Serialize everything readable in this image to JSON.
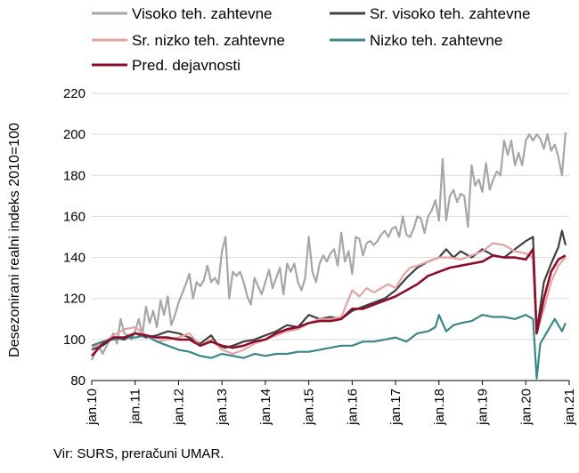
{
  "chart_data": {
    "type": "line",
    "ylabel": "Desezonirani realni indeks 2010=100",
    "ylim": [
      80,
      220
    ],
    "yticks": [
      80,
      100,
      120,
      140,
      160,
      180,
      200,
      220
    ],
    "xticks": [
      "jan.10",
      "jan.11",
      "jan.12",
      "jan.13",
      "jan.14",
      "jan.15",
      "jan.16",
      "jan.17",
      "jan.18",
      "jan.19",
      "jan.20",
      "jan.21"
    ],
    "grid": "horizontal",
    "legend_position": "top",
    "series": [
      {
        "name": "Visoko teh. zahtevne",
        "color": "#a6a6a6",
        "points": [
          [
            0,
            90
          ],
          [
            2,
            97
          ],
          [
            3,
            93
          ],
          [
            5,
            100
          ],
          [
            6,
            103
          ],
          [
            7,
            98
          ],
          [
            8,
            110
          ],
          [
            9,
            103
          ],
          [
            10,
            102
          ],
          [
            11,
            100
          ],
          [
            12,
            104
          ],
          [
            13,
            110
          ],
          [
            14,
            102
          ],
          [
            15,
            116
          ],
          [
            16,
            108
          ],
          [
            17,
            114
          ],
          [
            18,
            106
          ],
          [
            19,
            119
          ],
          [
            20,
            112
          ],
          [
            21,
            121
          ],
          [
            22,
            107
          ],
          [
            23,
            112
          ],
          [
            24,
            118
          ],
          [
            26,
            127
          ],
          [
            27,
            132
          ],
          [
            28,
            120
          ],
          [
            29,
            128
          ],
          [
            30,
            126
          ],
          [
            31,
            129
          ],
          [
            32,
            136
          ],
          [
            33,
            128
          ],
          [
            34,
            130
          ],
          [
            35,
            127
          ],
          [
            36,
            143
          ],
          [
            37,
            150
          ],
          [
            38,
            120
          ],
          [
            39,
            133
          ],
          [
            40,
            131
          ],
          [
            41,
            133
          ],
          [
            42,
            128
          ],
          [
            43,
            121
          ],
          [
            44,
            117
          ],
          [
            45,
            130
          ],
          [
            46,
            126
          ],
          [
            47,
            122
          ],
          [
            48,
            128
          ],
          [
            49,
            134
          ],
          [
            50,
            125
          ],
          [
            51,
            130
          ],
          [
            52,
            135
          ],
          [
            53,
            122
          ],
          [
            54,
            137
          ],
          [
            55,
            133
          ],
          [
            56,
            137
          ],
          [
            57,
            128
          ],
          [
            58,
            124
          ],
          [
            59,
            130
          ],
          [
            60,
            150
          ],
          [
            61,
            133
          ],
          [
            62,
            128
          ],
          [
            63,
            137
          ],
          [
            64,
            141
          ],
          [
            65,
            138
          ],
          [
            66,
            142
          ],
          [
            67,
            144
          ],
          [
            68,
            136
          ],
          [
            69,
            152
          ],
          [
            70,
            138
          ],
          [
            71,
            143
          ],
          [
            72,
            132
          ],
          [
            73,
            150
          ],
          [
            74,
            149
          ],
          [
            75,
            141
          ],
          [
            76,
            147
          ],
          [
            77,
            148
          ],
          [
            78,
            146
          ],
          [
            79,
            148
          ],
          [
            80,
            151
          ],
          [
            81,
            153
          ],
          [
            82,
            150
          ],
          [
            83,
            154
          ],
          [
            84,
            155
          ],
          [
            85,
            150
          ],
          [
            86,
            160
          ],
          [
            87,
            151
          ],
          [
            88,
            150
          ],
          [
            89,
            154
          ],
          [
            90,
            160
          ],
          [
            91,
            159
          ],
          [
            92,
            152
          ],
          [
            93,
            160
          ],
          [
            94,
            163
          ],
          [
            95,
            168
          ],
          [
            96,
            158
          ],
          [
            97,
            188
          ],
          [
            98,
            158
          ],
          [
            99,
            170
          ],
          [
            100,
            173
          ],
          [
            101,
            167
          ],
          [
            102,
            171
          ],
          [
            103,
            170
          ],
          [
            104,
            155
          ],
          [
            105,
            185
          ],
          [
            106,
            175
          ],
          [
            107,
            178
          ],
          [
            108,
            172
          ],
          [
            109,
            186
          ],
          [
            110,
            173
          ],
          [
            111,
            178
          ],
          [
            112,
            182
          ],
          [
            113,
            180
          ],
          [
            114,
            197
          ],
          [
            115,
            190
          ],
          [
            116,
            197
          ],
          [
            117,
            185
          ],
          [
            118,
            191
          ],
          [
            119,
            185
          ],
          [
            120,
            197
          ],
          [
            121,
            200
          ],
          [
            122,
            197
          ],
          [
            123,
            200
          ],
          [
            124,
            198
          ],
          [
            125,
            193
          ],
          [
            126,
            200
          ],
          [
            127,
            192
          ],
          [
            128,
            195
          ],
          [
            129,
            189
          ],
          [
            130,
            180
          ],
          [
            131,
            201
          ]
        ]
      },
      {
        "name": "Sr. visoko teh. zahtevne",
        "color": "#404040",
        "points": [
          [
            0,
            95
          ],
          [
            3,
            97
          ],
          [
            6,
            101
          ],
          [
            9,
            100
          ],
          [
            12,
            103
          ],
          [
            15,
            101
          ],
          [
            18,
            102
          ],
          [
            21,
            104
          ],
          [
            24,
            103
          ],
          [
            27,
            101
          ],
          [
            30,
            98
          ],
          [
            33,
            102
          ],
          [
            35,
            97
          ],
          [
            37,
            96
          ],
          [
            39,
            97
          ],
          [
            42,
            99
          ],
          [
            45,
            100
          ],
          [
            48,
            102
          ],
          [
            51,
            104
          ],
          [
            54,
            107
          ],
          [
            57,
            106
          ],
          [
            60,
            112
          ],
          [
            63,
            110
          ],
          [
            66,
            111
          ],
          [
            69,
            110
          ],
          [
            72,
            114
          ],
          [
            75,
            116
          ],
          [
            78,
            118
          ],
          [
            81,
            120
          ],
          [
            84,
            124
          ],
          [
            87,
            130
          ],
          [
            90,
            135
          ],
          [
            93,
            138
          ],
          [
            96,
            140
          ],
          [
            98,
            144
          ],
          [
            100,
            140
          ],
          [
            102,
            143
          ],
          [
            105,
            140
          ],
          [
            108,
            144
          ],
          [
            111,
            141
          ],
          [
            114,
            140
          ],
          [
            117,
            144
          ],
          [
            120,
            148
          ],
          [
            122,
            150
          ],
          [
            123,
            104
          ],
          [
            125,
            128
          ],
          [
            127,
            137
          ],
          [
            129,
            145
          ],
          [
            130,
            153
          ],
          [
            131,
            146
          ]
        ]
      },
      {
        "name": "Sr. nizko teh. zahtevne",
        "color": "#e6a3a3",
        "points": [
          [
            0,
            96
          ],
          [
            3,
            98
          ],
          [
            6,
            102
          ],
          [
            9,
            105
          ],
          [
            12,
            106
          ],
          [
            15,
            102
          ],
          [
            18,
            99
          ],
          [
            21,
            100
          ],
          [
            24,
            101
          ],
          [
            27,
            103
          ],
          [
            30,
            97
          ],
          [
            33,
            100
          ],
          [
            36,
            95
          ],
          [
            39,
            93
          ],
          [
            42,
            95
          ],
          [
            45,
            98
          ],
          [
            48,
            100
          ],
          [
            51,
            102
          ],
          [
            54,
            104
          ],
          [
            57,
            105
          ],
          [
            60,
            108
          ],
          [
            63,
            110
          ],
          [
            66,
            110
          ],
          [
            69,
            111
          ],
          [
            72,
            124
          ],
          [
            74,
            121
          ],
          [
            76,
            125
          ],
          [
            78,
            123
          ],
          [
            80,
            125
          ],
          [
            82,
            127
          ],
          [
            84,
            125
          ],
          [
            86,
            131
          ],
          [
            88,
            135
          ],
          [
            90,
            136
          ],
          [
            93,
            138
          ],
          [
            96,
            140
          ],
          [
            99,
            140
          ],
          [
            102,
            139
          ],
          [
            105,
            141
          ],
          [
            108,
            143
          ],
          [
            111,
            147
          ],
          [
            114,
            146
          ],
          [
            117,
            143
          ],
          [
            120,
            142
          ],
          [
            122,
            140
          ],
          [
            123,
            103
          ],
          [
            125,
            115
          ],
          [
            127,
            128
          ],
          [
            129,
            136
          ],
          [
            131,
            140
          ]
        ]
      },
      {
        "name": "Nizko teh. zahtevne",
        "color": "#3b8687",
        "points": [
          [
            0,
            97
          ],
          [
            3,
            99
          ],
          [
            6,
            100
          ],
          [
            9,
            101
          ],
          [
            12,
            101
          ],
          [
            15,
            102
          ],
          [
            18,
            99
          ],
          [
            21,
            97
          ],
          [
            24,
            95
          ],
          [
            27,
            94
          ],
          [
            30,
            92
          ],
          [
            33,
            91
          ],
          [
            36,
            93
          ],
          [
            39,
            92
          ],
          [
            42,
            91
          ],
          [
            45,
            93
          ],
          [
            48,
            92
          ],
          [
            51,
            93
          ],
          [
            54,
            93
          ],
          [
            57,
            94
          ],
          [
            60,
            94
          ],
          [
            63,
            95
          ],
          [
            66,
            96
          ],
          [
            69,
            97
          ],
          [
            72,
            97
          ],
          [
            75,
            99
          ],
          [
            78,
            99
          ],
          [
            81,
            100
          ],
          [
            84,
            101
          ],
          [
            87,
            99
          ],
          [
            90,
            103
          ],
          [
            93,
            104
          ],
          [
            95,
            106
          ],
          [
            96,
            112
          ],
          [
            98,
            104
          ],
          [
            100,
            107
          ],
          [
            102,
            108
          ],
          [
            105,
            109
          ],
          [
            108,
            112
          ],
          [
            111,
            111
          ],
          [
            114,
            111
          ],
          [
            117,
            110
          ],
          [
            120,
            112
          ],
          [
            122,
            110
          ],
          [
            123,
            81
          ],
          [
            124,
            98
          ],
          [
            126,
            104
          ],
          [
            128,
            110
          ],
          [
            130,
            104
          ],
          [
            131,
            108
          ]
        ]
      },
      {
        "name": "Pred. dejavnosti",
        "color": "#8b0e2c",
        "points": [
          [
            0,
            92
          ],
          [
            3,
            98
          ],
          [
            6,
            101
          ],
          [
            9,
            101
          ],
          [
            12,
            103
          ],
          [
            15,
            102
          ],
          [
            18,
            101
          ],
          [
            21,
            101
          ],
          [
            24,
            100
          ],
          [
            27,
            100
          ],
          [
            30,
            97
          ],
          [
            33,
            99
          ],
          [
            36,
            97
          ],
          [
            39,
            96
          ],
          [
            42,
            97
          ],
          [
            45,
            99
          ],
          [
            48,
            100
          ],
          [
            51,
            103
          ],
          [
            54,
            105
          ],
          [
            57,
            106
          ],
          [
            60,
            108
          ],
          [
            63,
            109
          ],
          [
            66,
            109
          ],
          [
            69,
            110
          ],
          [
            72,
            115
          ],
          [
            75,
            115
          ],
          [
            78,
            117
          ],
          [
            81,
            119
          ],
          [
            84,
            121
          ],
          [
            87,
            124
          ],
          [
            90,
            127
          ],
          [
            93,
            131
          ],
          [
            96,
            133
          ],
          [
            99,
            135
          ],
          [
            102,
            136
          ],
          [
            105,
            137
          ],
          [
            108,
            138
          ],
          [
            111,
            141
          ],
          [
            114,
            140
          ],
          [
            117,
            140
          ],
          [
            120,
            139
          ],
          [
            122,
            144
          ],
          [
            123,
            103
          ],
          [
            125,
            120
          ],
          [
            127,
            133
          ],
          [
            129,
            139
          ],
          [
            131,
            141
          ]
        ]
      }
    ]
  },
  "source_note": "Vir: SURS, preračuni UMAR."
}
